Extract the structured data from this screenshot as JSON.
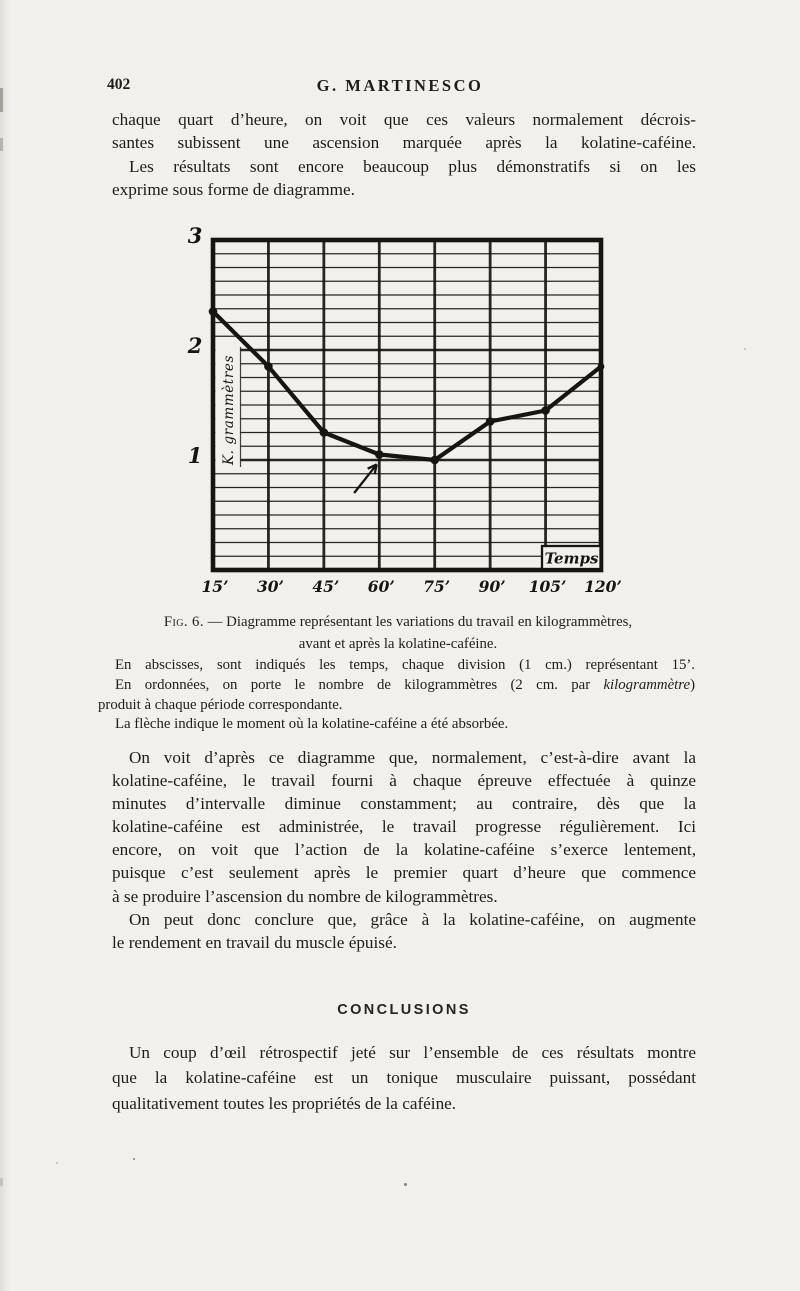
{
  "page": {
    "number": "402",
    "running_title": "G. MARTINESCO"
  },
  "body": {
    "intro": [
      {
        "t": "chaque quart d’heure, on voit que ces valeurs normalement décrois-"
      },
      {
        "t": "santes subissent une ascension marquée après la kolatine-caféine."
      },
      {
        "t": "Les résultats sont encore beaucoup plus démonstratifs si on les",
        "indent": true
      },
      {
        "t": "exprime sous forme de diagramme.",
        "end": true
      }
    ],
    "discussion": [
      {
        "t": "On voit d’après ce diagramme que, normalement, c’est-à-dire avant la",
        "indent": true
      },
      {
        "t": "kolatine-caféine, le travail fourni à chaque épreuve effectuée à quinze"
      },
      {
        "t": "minutes d’intervalle diminue constamment; au contraire, dès que la"
      },
      {
        "t": "kolatine-caféine est administrée, le travail progresse régulièrement. Ici"
      },
      {
        "t": "encore, on voit que l’action de la kolatine-caféine s’exerce lentement,"
      },
      {
        "t": "puisque c’est seulement après le premier quart d’heure que commence"
      },
      {
        "t": "à se produire l’ascension du nombre de kilogrammètres.",
        "end": true
      }
    ],
    "lead": [
      {
        "t": "On peut donc conclure que, grâce à la kolatine-caféine, on augmente",
        "indent": true
      },
      {
        "t": "le rendement en travail du muscle épuisé.",
        "end": true
      }
    ]
  },
  "figure": {
    "caption": [
      {
        "parts": [
          {
            "t": "Fig. 6.",
            "smallcaps": true
          },
          {
            "t": " — Diagramme représentant les variations du travail en kilogrammètres,"
          }
        ]
      },
      {
        "t": "avant et après la kolatine-caféine.",
        "end": true
      }
    ],
    "notes": [
      {
        "t": "En abscisses, sont indiqués les temps, chaque division (1 cm.) représentant 15’.",
        "indent": true
      },
      {
        "parts": [
          {
            "t": "En ordonnées, on porte le nombre de kilogrammètres (2 cm. par "
          },
          {
            "t": "kilogrammètre",
            "italic": true
          },
          {
            "t": ")"
          }
        ],
        "indent": true
      },
      {
        "t": "produit à chaque période correspondante.",
        "end": true
      },
      {
        "t": "La flèche indique le moment où la kolatine-caféine a été absorbée.",
        "indent": true,
        "end": true
      }
    ]
  },
  "conclusions": {
    "heading": "CONCLUSIONS",
    "paragraph": [
      {
        "t": "Un coup d’œil rétrospectif jeté sur l’ensemble de ces résultats montre",
        "indent": true
      },
      {
        "t": "que la kolatine-caféine est un tonique musculaire puissant, possédant"
      },
      {
        "t": "qualitativement toutes les propriétés de la caféine.",
        "end": true
      }
    ]
  },
  "chart_data": {
    "type": "line",
    "title": "Diagramme représentant les variations du travail en kilogrammètres, avant et après la kolatine-caféine.",
    "x_labels": [
      "15’",
      "30’",
      "45’",
      "60’",
      "75’",
      "90’",
      "105’",
      "120’"
    ],
    "x_minutes": [
      15,
      30,
      45,
      60,
      75,
      90,
      105,
      120
    ],
    "values": [
      2.35,
      1.85,
      1.25,
      1.05,
      1.0,
      1.35,
      1.45,
      1.85
    ],
    "y_ticks": [
      3,
      2,
      1
    ],
    "ylim": [
      0,
      3
    ],
    "ylabel": "K. grammètres",
    "xlabel_box": "Temps",
    "minor_divisions_per_unit": 8,
    "grid": "on",
    "ink_color": "#181511",
    "paper_color": "#f1f0ec",
    "arrow_annotation": {
      "meaning": "moment où la kolatine-caféine a été absorbée",
      "from": {
        "x_min": 53.2,
        "value": 0.7
      },
      "to": {
        "x_min": 59.3,
        "value": 0.96
      }
    }
  }
}
